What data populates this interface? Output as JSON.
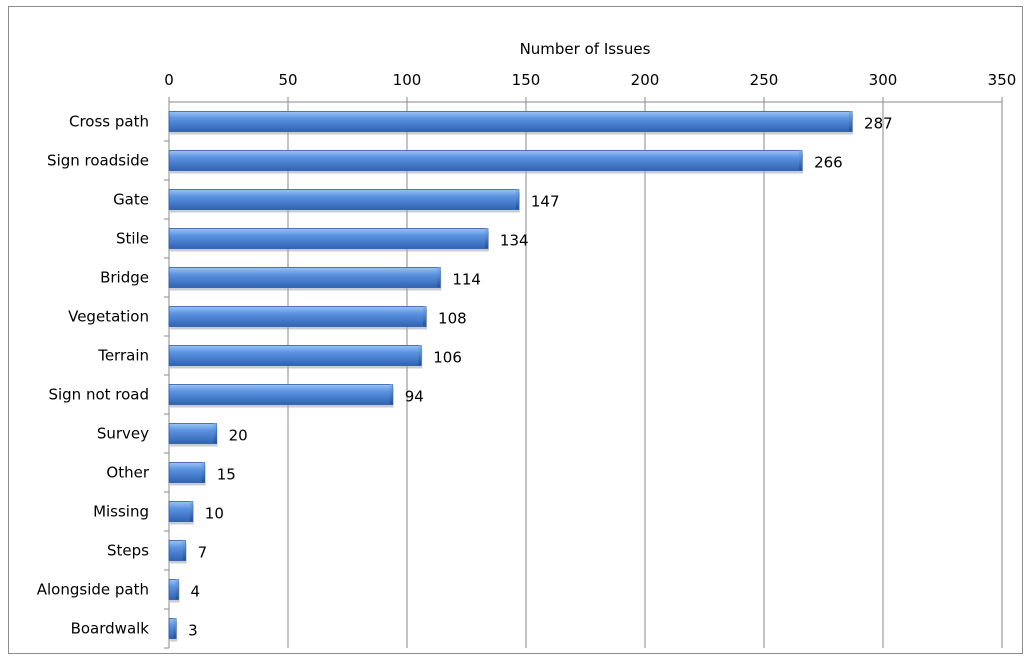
{
  "chart_data": {
    "type": "bar",
    "orientation": "horizontal",
    "title": "",
    "xlabel": "Number of Issues",
    "x_axis_position": "top",
    "xlim": [
      0,
      350
    ],
    "x_ticks": [
      "0",
      "50",
      "100",
      "150",
      "200",
      "250",
      "300",
      "350"
    ],
    "grid": "vertical gridlines on",
    "legend": "none",
    "bar_color": "#4a7fd0",
    "categories": [
      "Cross path",
      "Sign roadside",
      "Gate",
      "Stile",
      "Bridge",
      "Vegetation",
      "Terrain",
      "Sign not road",
      "Survey",
      "Other",
      "Missing",
      "Steps",
      "Alongside path",
      "Boardwalk"
    ],
    "values": [
      287,
      266,
      147,
      134,
      114,
      108,
      106,
      94,
      20,
      15,
      10,
      7,
      4,
      3
    ],
    "data_labels": [
      "287",
      "266",
      "147",
      "134",
      "114",
      "108",
      "106",
      "94",
      "20",
      "15",
      "10",
      "7",
      "4",
      "3"
    ]
  }
}
